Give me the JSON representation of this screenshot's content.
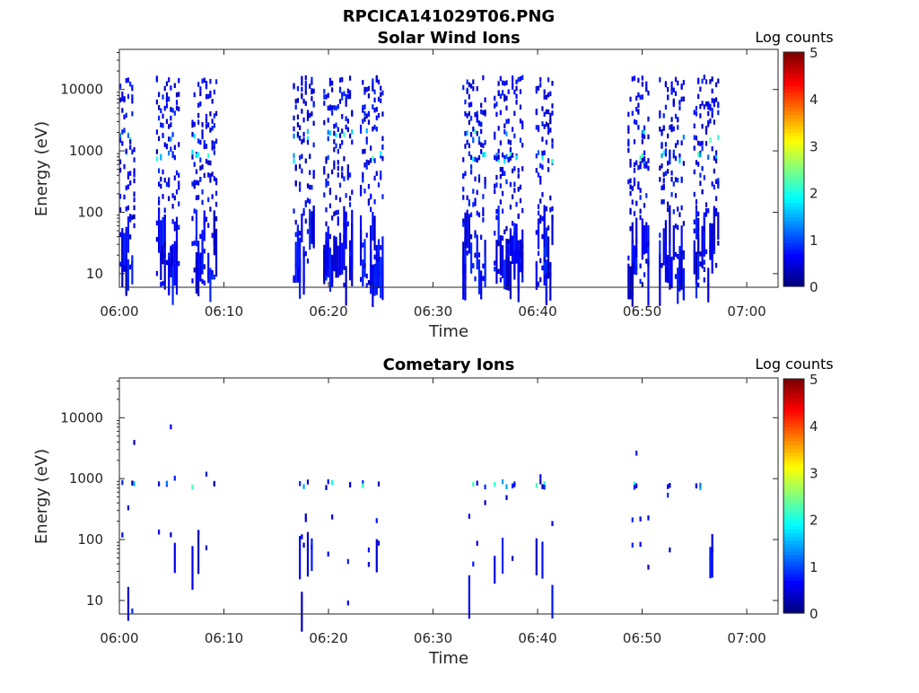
{
  "figure_title": "RPCICA141029T06.PNG",
  "chart_data": [
    {
      "type": "heatmap",
      "title": "Solar Wind Ions",
      "xlabel": "Time",
      "ylabel": "Energy (eV)",
      "x_ticks": [
        "06:00",
        "06:10",
        "06:20",
        "06:30",
        "06:40",
        "06:50",
        "07:00"
      ],
      "y_ticks": [
        "10",
        "100",
        "1000",
        "10000"
      ],
      "xlim": [
        "06:00",
        "07:03"
      ],
      "ylim": [
        6,
        45000
      ],
      "y_scale": "log",
      "colorbar": {
        "label": "Log counts",
        "ticks": [
          "0",
          "1",
          "2",
          "3",
          "4",
          "5"
        ],
        "range": [
          0,
          5
        ],
        "colormap": "jet"
      },
      "bursts_minutes": [
        [
          0,
          1.5
        ],
        [
          3.5,
          5.6
        ],
        [
          6.9,
          9.3
        ],
        [
          16.6,
          18.6
        ],
        [
          19.5,
          22.3
        ],
        [
          23,
          25.2
        ],
        [
          32.8,
          35
        ],
        [
          35.8,
          38.5
        ],
        [
          39.8,
          41.5
        ],
        [
          48.6,
          50.6
        ],
        [
          51.6,
          53.9
        ],
        [
          54.9,
          57.3
        ]
      ],
      "energy_peaks_eV": [
        800,
        1800
      ]
    },
    {
      "type": "heatmap",
      "title": "Cometary Ions",
      "xlabel": "Time",
      "ylabel": "Energy (eV)",
      "x_ticks": [
        "06:00",
        "06:10",
        "06:20",
        "06:30",
        "06:40",
        "06:50",
        "07:00"
      ],
      "y_ticks": [
        "10",
        "100",
        "1000",
        "10000"
      ],
      "xlim": [
        "06:00",
        "07:03"
      ],
      "ylim": [
        6,
        45000
      ],
      "y_scale": "log",
      "colorbar": {
        "label": "Log counts",
        "ticks": [
          "0",
          "1",
          "2",
          "3",
          "4",
          "5"
        ],
        "range": [
          0,
          5
        ],
        "colormap": "jet"
      },
      "bursts_minutes": [
        [
          0,
          1.5
        ],
        [
          3.5,
          5.6
        ],
        [
          6.9,
          9.3
        ],
        [
          16.6,
          18.6
        ],
        [
          19.5,
          22.3
        ],
        [
          23,
          25.2
        ],
        [
          32.8,
          35
        ],
        [
          35.8,
          38.5
        ],
        [
          39.8,
          41.5
        ],
        [
          48.6,
          50.6
        ],
        [
          51.6,
          53.9
        ],
        [
          54.9,
          57.3
        ]
      ],
      "energy_peaks_eV": [
        800
      ]
    }
  ]
}
